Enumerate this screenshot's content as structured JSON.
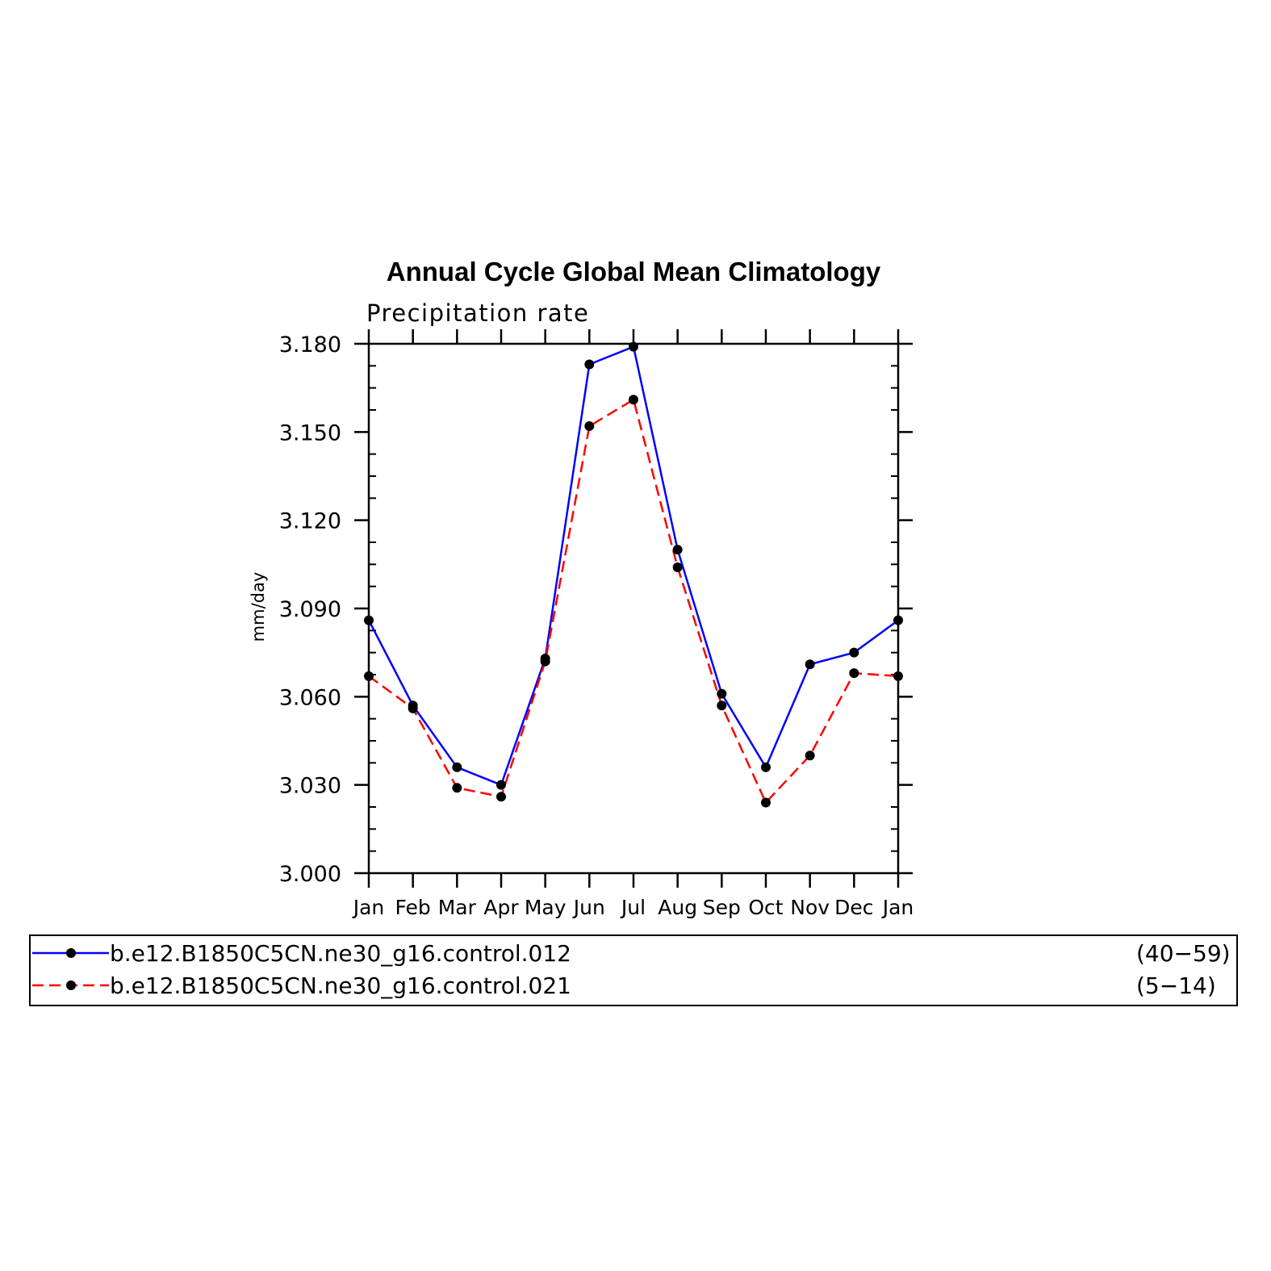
{
  "chart_data": {
    "type": "line",
    "title": "Annual Cycle Global Mean Climatology",
    "subtitle": "Precipitation rate",
    "xlabel": "",
    "ylabel": "mm/day",
    "categories": [
      "Jan",
      "Feb",
      "Mar",
      "Apr",
      "May",
      "Jun",
      "Jul",
      "Aug",
      "Sep",
      "Oct",
      "Nov",
      "Dec",
      "Jan"
    ],
    "ylim": [
      3.0,
      3.18
    ],
    "yticks": [
      "3.000",
      "3.030",
      "3.060",
      "3.090",
      "3.120",
      "3.150",
      "3.180"
    ],
    "grid": false,
    "legend_position": "bottom",
    "series": [
      {
        "name": "b.e12.B1850C5CN.ne30_g16.control.012",
        "years": "(40−59)",
        "color": "#0000ff",
        "dash": "solid",
        "values": [
          3.086,
          3.057,
          3.036,
          3.03,
          3.073,
          3.173,
          3.179,
          3.11,
          3.061,
          3.036,
          3.071,
          3.075,
          3.086
        ]
      },
      {
        "name": "b.e12.B1850C5CN.ne30_g16.control.021",
        "years": "(5−14)",
        "color": "#ff0000",
        "dash": "dashed",
        "values": [
          3.067,
          3.056,
          3.029,
          3.026,
          3.072,
          3.152,
          3.161,
          3.104,
          3.057,
          3.024,
          3.04,
          3.068,
          3.067
        ]
      }
    ]
  }
}
